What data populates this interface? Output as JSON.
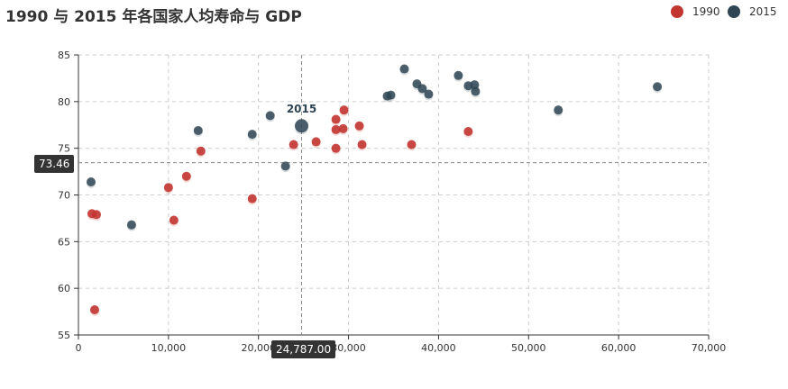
{
  "title": "1990 与 2015 年各国家人均寿命与 GDP",
  "chart_data": {
    "type": "scatter",
    "xlim": [
      0,
      70000
    ],
    "ylim": [
      55,
      85
    ],
    "x_ticks": [
      "0",
      "10,000",
      "20,000",
      "30,000",
      "40,000",
      "50,000",
      "60,000",
      "70,000"
    ],
    "y_ticks": [
      "55",
      "60",
      "65",
      "70",
      "75",
      "80",
      "85"
    ],
    "grid": true,
    "legend_position": "top-right",
    "series": [
      {
        "name": "1990",
        "color": "#c23531",
        "points": [
          [
            1500,
            68.0
          ],
          [
            2000,
            67.9
          ],
          [
            1800,
            57.7
          ],
          [
            10000,
            70.8
          ],
          [
            10600,
            67.3
          ],
          [
            12000,
            72.0
          ],
          [
            13600,
            74.7
          ],
          [
            19300,
            69.6
          ],
          [
            23900,
            75.4
          ],
          [
            26400,
            75.7
          ],
          [
            28600,
            78.1
          ],
          [
            28600,
            77.0
          ],
          [
            28600,
            75.0
          ],
          [
            29400,
            77.1
          ],
          [
            29500,
            79.1
          ],
          [
            31200,
            77.4
          ],
          [
            31500,
            75.4
          ],
          [
            37000,
            75.4
          ],
          [
            43300,
            76.8
          ]
        ]
      },
      {
        "name": "2015",
        "color": "#2f4554",
        "points": [
          [
            1400,
            71.4
          ],
          [
            5900,
            66.8
          ],
          [
            13300,
            76.9
          ],
          [
            19300,
            76.5
          ],
          [
            21300,
            78.5
          ],
          [
            23000,
            73.1
          ],
          [
            24787,
            77.4
          ],
          [
            34300,
            80.6
          ],
          [
            34700,
            80.7
          ],
          [
            36200,
            83.5
          ],
          [
            37600,
            81.9
          ],
          [
            38200,
            81.4
          ],
          [
            38900,
            80.8
          ],
          [
            42200,
            82.8
          ],
          [
            43300,
            81.7
          ],
          [
            44000,
            81.8
          ],
          [
            44100,
            81.1
          ],
          [
            53300,
            79.1
          ],
          [
            64300,
            81.6
          ]
        ]
      }
    ],
    "highlight": {
      "series": "2015",
      "x": 24787,
      "y": 77.4,
      "label": "2015"
    },
    "axis_pointer": {
      "x_label": "24,787.00",
      "y_label": "73.46",
      "x_value": 24787,
      "y_value": 73.46
    }
  }
}
